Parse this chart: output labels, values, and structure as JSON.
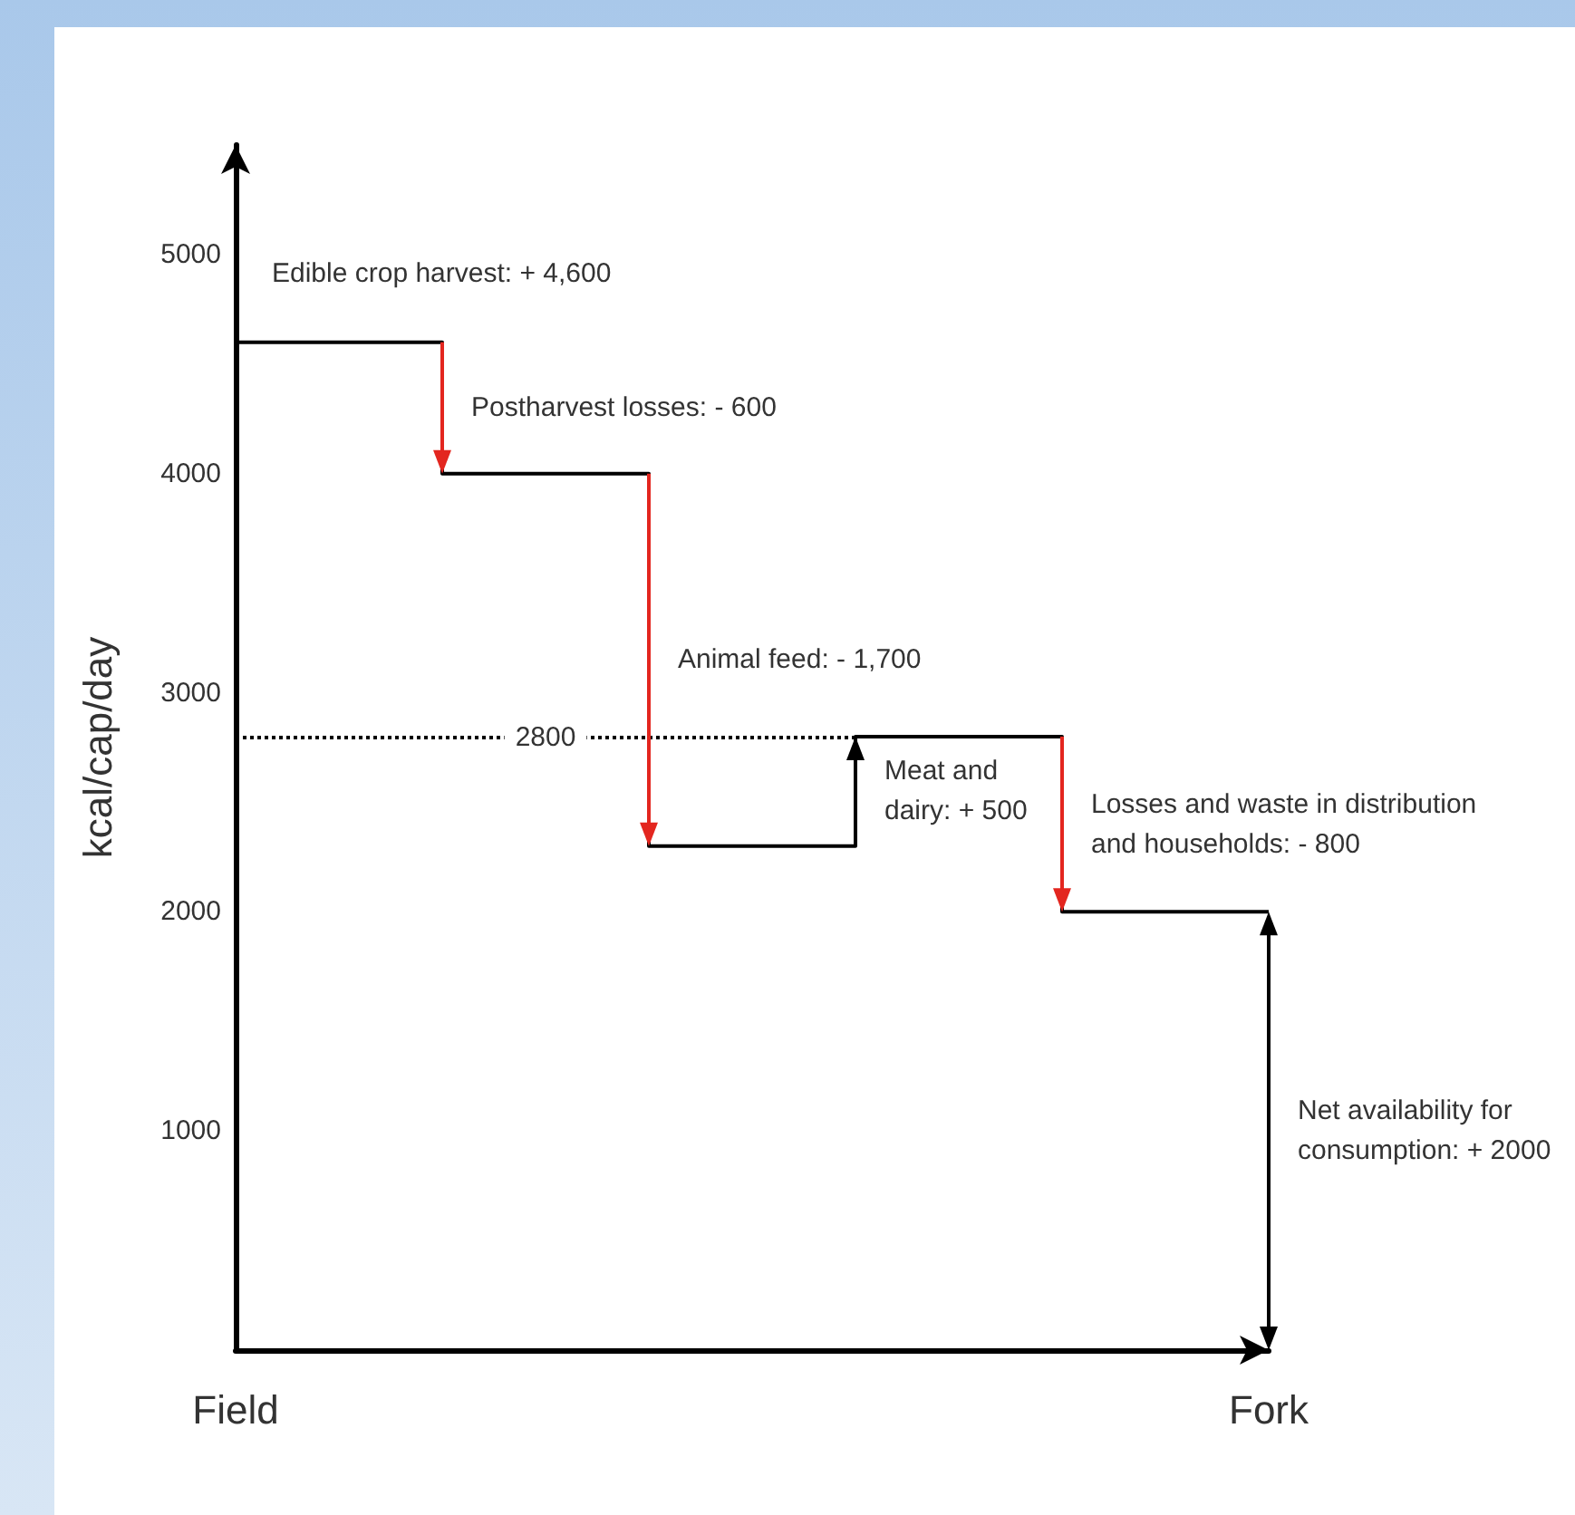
{
  "chart_data": {
    "type": "step",
    "ylabel": "kcal/cap/day",
    "categories": [
      "Field",
      null,
      null,
      null,
      null,
      "Fork"
    ],
    "series": [
      {
        "colors": [
          "#000000",
          "#e3261f",
          "#e3261f",
          "#000000",
          "#e3261f",
          "#000000"
        ],
        "values": [
          4600,
          4000,
          2300,
          2800,
          2000,
          2000
        ]
      }
    ],
    "ylim": [
      0,
      5500
    ],
    "yticks": [
      1000,
      2000,
      3000,
      4000,
      5000
    ],
    "ref_lines": [
      {
        "axis": "y",
        "value": 2800,
        "label": "2800",
        "line_style": "dotted",
        "color": "#000000"
      }
    ],
    "annotations": [
      "Edible crop harvest: + 4,600",
      "Postharvest losses: - 600",
      "Animal feed: - 1,700",
      "Meat and\ndairy: + 500",
      "Losses and waste in distribution\nand households: - 800",
      "Net availability for\nconsumption: + 2000"
    ],
    "grid": false
  }
}
